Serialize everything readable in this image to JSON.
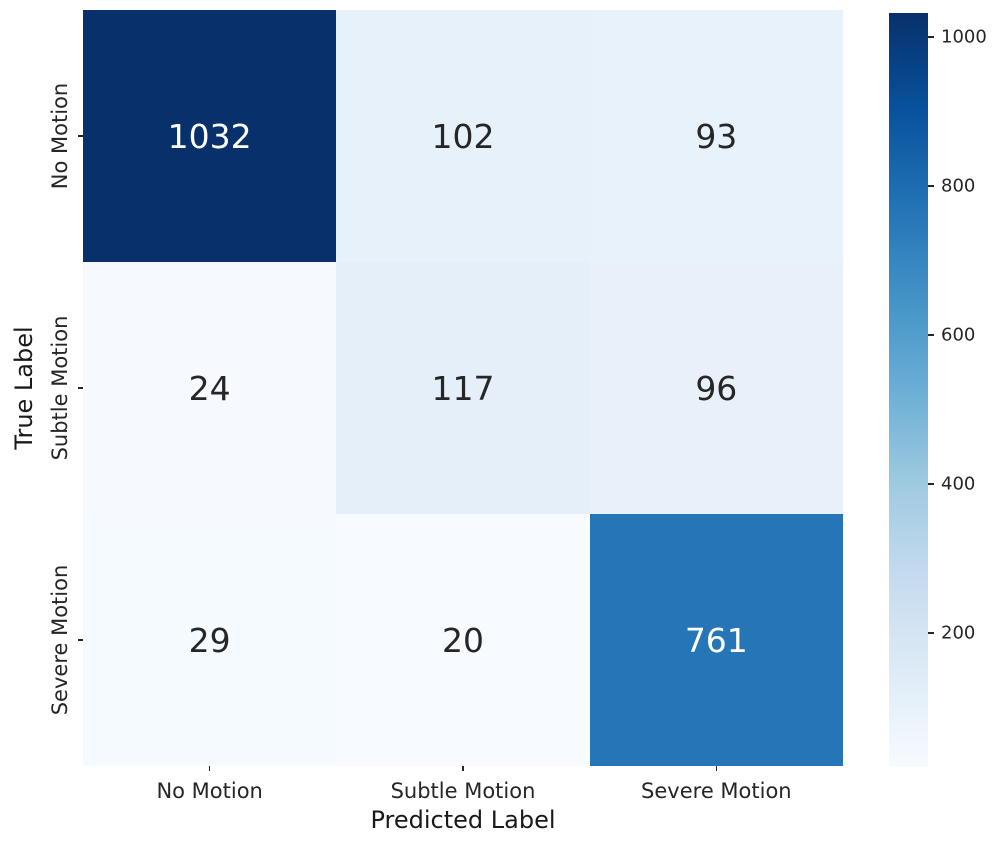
{
  "chart_data": {
    "type": "heatmap",
    "title": "",
    "xlabel": "Predicted Label",
    "ylabel": "True Label",
    "x_categories": [
      "No Motion",
      "Subtle Motion",
      "Severe Motion"
    ],
    "y_categories": [
      "No Motion",
      "Subtle Motion",
      "Severe Motion"
    ],
    "matrix": [
      [
        1032,
        102,
        93
      ],
      [
        24,
        117,
        96
      ],
      [
        29,
        20,
        761
      ]
    ],
    "vmin": 20,
    "vmax": 1032,
    "colormap": "Blues",
    "colormap_anchors": [
      "#f7fbff",
      "#deebf7",
      "#c6dbef",
      "#9ecae1",
      "#6baed6",
      "#4292c6",
      "#2171b5",
      "#08519c",
      "#08306b"
    ],
    "cell_colors": [
      [
        "#08306b",
        "#e7f1fa",
        "#e8f2fa"
      ],
      [
        "#f6fafe",
        "#e4eff9",
        "#e8f1fa"
      ],
      [
        "#f5fafe",
        "#f7fbff",
        "#2676b7"
      ]
    ],
    "cell_text_colors": [
      [
        "#ffffff",
        "#262626",
        "#262626"
      ],
      [
        "#262626",
        "#262626",
        "#262626"
      ],
      [
        "#262626",
        "#262626",
        "#ffffff"
      ]
    ],
    "colorbar_ticks": [
      200,
      400,
      600,
      800,
      1000
    ],
    "legend_position": "right-colorbar",
    "grid": false,
    "annotated": true
  }
}
